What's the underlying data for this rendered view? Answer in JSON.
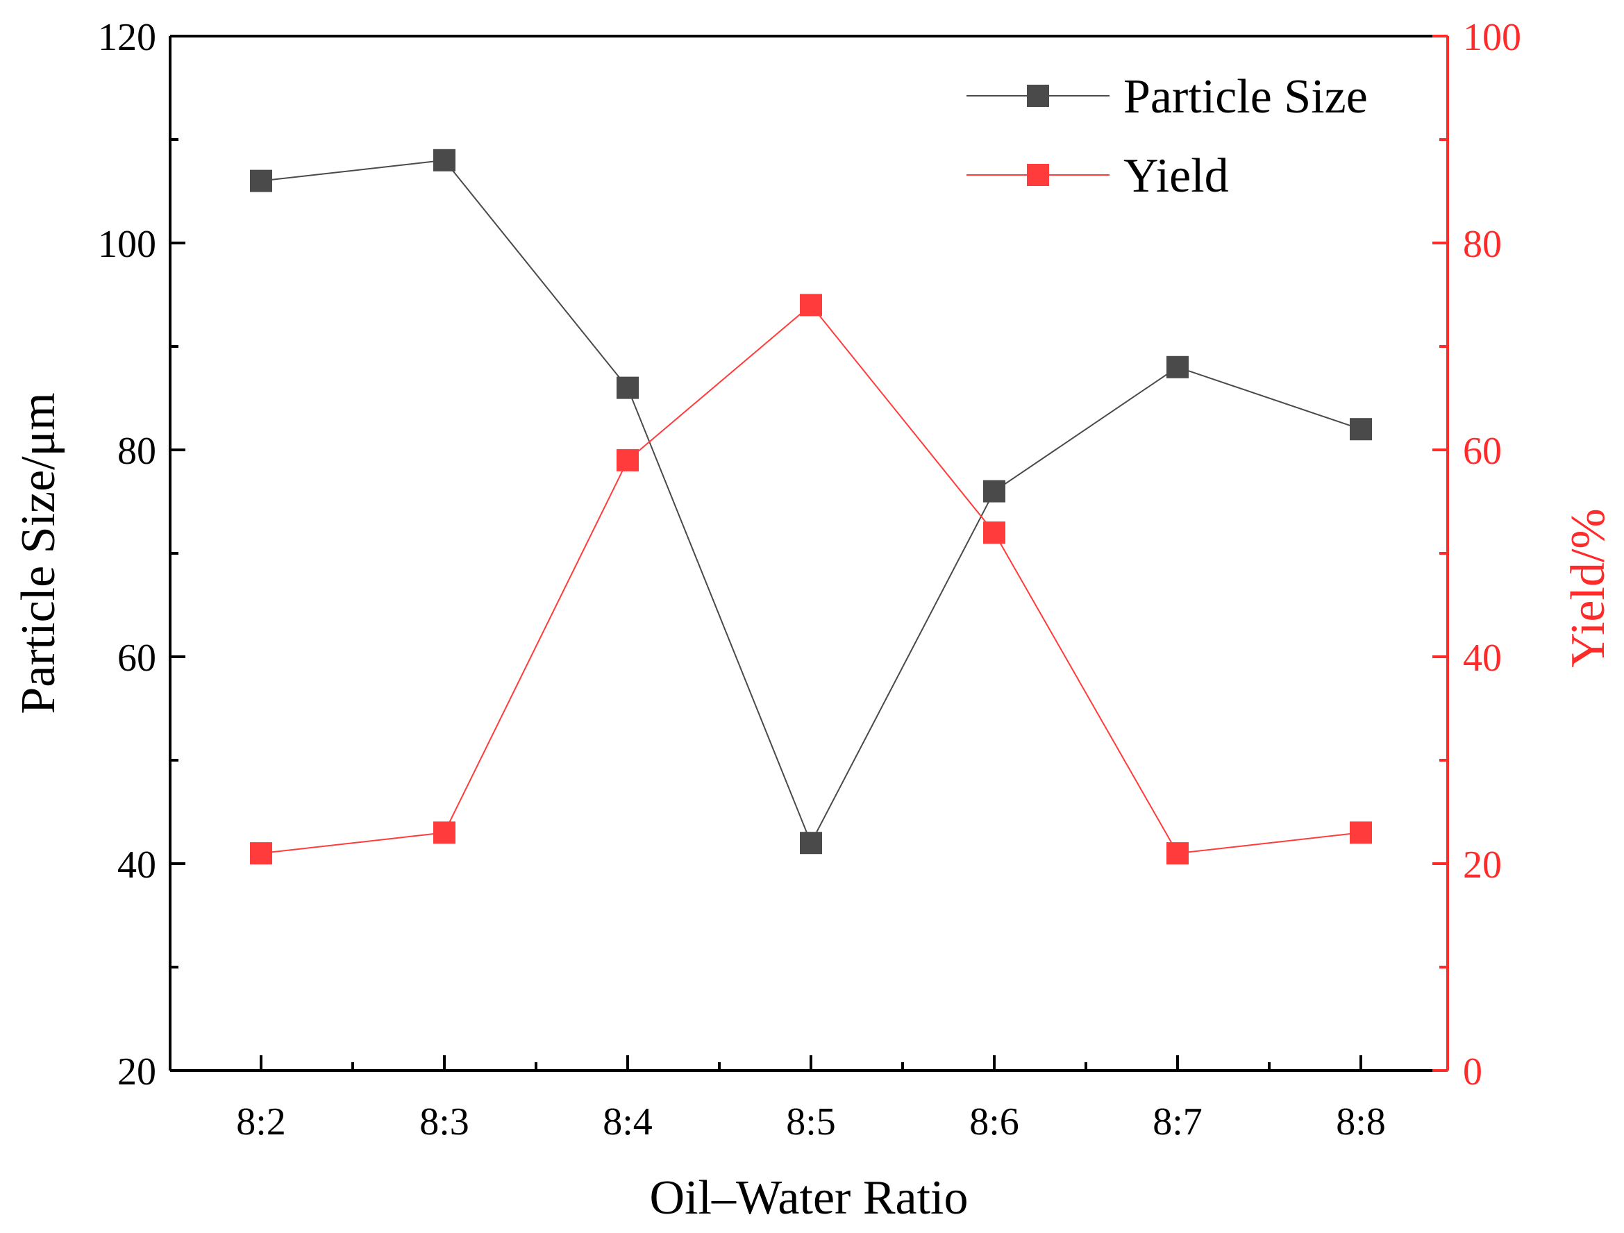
{
  "chart_data": {
    "type": "line",
    "xlabel": "Oil–Water Ratio",
    "categories": [
      "8:2",
      "8:3",
      "8:4",
      "8:5",
      "8:6",
      "8:7",
      "8:8"
    ],
    "y_left": {
      "label": "Particle Size/μm",
      "range": [
        20,
        120
      ],
      "ticks": [
        20,
        40,
        60,
        80,
        100,
        120
      ],
      "color": "#000000"
    },
    "y_right": {
      "label": "Yield/%",
      "range": [
        0,
        100
      ],
      "ticks": [
        0,
        20,
        40,
        60,
        80,
        100
      ],
      "color": "#ff2a2a"
    },
    "series": [
      {
        "name": "Particle Size",
        "axis": "left",
        "color": "#4a4a4a",
        "values": [
          106,
          108,
          86,
          42,
          76,
          88,
          82
        ]
      },
      {
        "name": "Yield",
        "axis": "right",
        "color": "#ff3b3b",
        "values": [
          21,
          23,
          59,
          74,
          52,
          21,
          23
        ]
      }
    ],
    "legend": "top-right"
  }
}
